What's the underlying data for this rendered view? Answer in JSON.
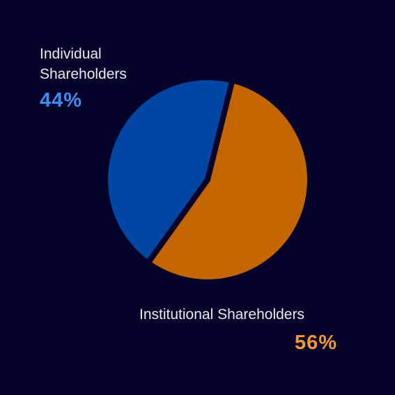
{
  "chart_data": {
    "type": "pie",
    "categories": [
      "Individual Shareholders",
      "Institutional Shareholders"
    ],
    "values": [
      44,
      56
    ],
    "value_labels": [
      "44%",
      "56%"
    ],
    "colors": [
      "#0046a2",
      "#c46500"
    ],
    "label_colors": [
      "#3d8cf2",
      "#f5943c"
    ]
  }
}
